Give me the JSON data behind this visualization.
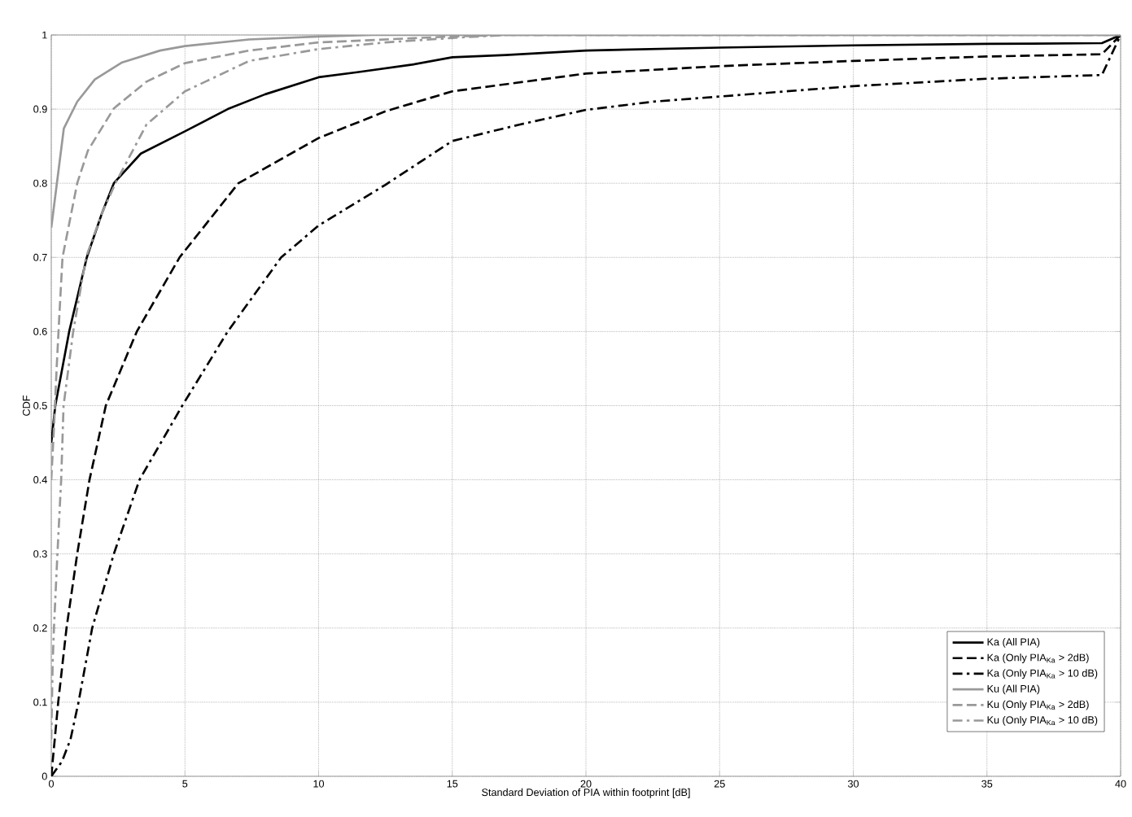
{
  "chart_data": {
    "type": "line",
    "xlabel": "Standard Deviation of PIA within footprint [dB]",
    "ylabel": "CDF",
    "xlim": [
      0,
      40
    ],
    "ylim": [
      0,
      1
    ],
    "xticks": [
      0,
      5,
      10,
      15,
      20,
      25,
      30,
      35,
      40
    ],
    "yticks": [
      0,
      0.1,
      0.2,
      0.3,
      0.4,
      0.5,
      0.6,
      0.7,
      0.8,
      0.9,
      1
    ],
    "grid": true,
    "legend": "bottom right",
    "series": [
      {
        "name": "Ka (All PIA)",
        "color": "#000000",
        "line_style": "solid",
        "x": [
          0,
          0.15,
          0.67,
          1.33,
          1.9,
          2.34,
          3.35,
          5.0,
          6.6,
          8.0,
          10,
          11.5,
          13.5,
          15,
          17,
          20,
          25,
          30,
          35,
          39.3,
          40
        ],
        "values": [
          0.45,
          0.5,
          0.6,
          0.7,
          0.76,
          0.8,
          0.84,
          0.87,
          0.9,
          0.92,
          0.943,
          0.95,
          0.96,
          0.97,
          0.973,
          0.979,
          0.983,
          0.986,
          0.988,
          0.989,
          1.0
        ]
      },
      {
        "name": "Ka (Only PIA$_{Ka}$ > 2dB)",
        "color": "#000000",
        "line_style": "dashed",
        "x": [
          0,
          0.26,
          0.57,
          0.97,
          1.43,
          2.04,
          3.2,
          4.8,
          7.0,
          10,
          12.5,
          15,
          20,
          25,
          30,
          35,
          39.3,
          40
        ],
        "values": [
          0,
          0.1,
          0.2,
          0.3,
          0.4,
          0.5,
          0.6,
          0.7,
          0.8,
          0.861,
          0.897,
          0.924,
          0.948,
          0.958,
          0.965,
          0.971,
          0.974,
          1.0
        ]
      },
      {
        "name": "Ka (Only PIA$_{Ka}$ > 10 dB)",
        "color": "#000000",
        "line_style": "dashdot",
        "x": [
          0,
          0.4,
          0.72,
          1.02,
          1.53,
          2.34,
          3.3,
          4.9,
          6.6,
          8.6,
          10,
          12.5,
          15,
          17.5,
          20,
          22.5,
          25,
          30,
          35,
          39.3,
          40
        ],
        "values": [
          0,
          0.02,
          0.05,
          0.1,
          0.2,
          0.3,
          0.4,
          0.5,
          0.6,
          0.7,
          0.743,
          0.798,
          0.857,
          0.879,
          0.899,
          0.91,
          0.917,
          0.931,
          0.941,
          0.946,
          1.0
        ]
      },
      {
        "name": "Ku (All PIA)",
        "color": "#999999",
        "line_style": "solid",
        "x": [
          0,
          0.47,
          0.97,
          1.63,
          2.65,
          4.07,
          5,
          7.4,
          10,
          12,
          40
        ],
        "values": [
          0.74,
          0.874,
          0.91,
          0.94,
          0.963,
          0.979,
          0.985,
          0.994,
          0.998,
          1.0,
          1.0
        ]
      },
      {
        "name": "Ku (Only PIA$_{Ka}$ > 2dB)",
        "color": "#999999",
        "line_style": "dashed",
        "x": [
          0,
          0.1,
          0.2,
          0.3,
          0.42,
          0.97,
          1.37,
          2.34,
          3.56,
          5,
          7.4,
          10,
          15,
          17,
          40
        ],
        "values": [
          0.4,
          0.47,
          0.55,
          0.62,
          0.7,
          0.8,
          0.844,
          0.901,
          0.937,
          0.962,
          0.979,
          0.99,
          0.998,
          1.0,
          1.0
        ]
      },
      {
        "name": "Ku (Only PIA$_{Ka}$ > 10 dB)",
        "color": "#999999",
        "line_style": "dashdot",
        "x": [
          0,
          0.05,
          0.1,
          0.23,
          0.37,
          0.46,
          0.82,
          1.3,
          1.9,
          2.4,
          3.56,
          5,
          7.4,
          10,
          12.5,
          15,
          17,
          40
        ],
        "values": [
          0.05,
          0.15,
          0.2,
          0.3,
          0.4,
          0.5,
          0.6,
          0.7,
          0.76,
          0.8,
          0.879,
          0.924,
          0.965,
          0.981,
          0.99,
          0.996,
          1.0,
          1.0
        ]
      }
    ]
  }
}
